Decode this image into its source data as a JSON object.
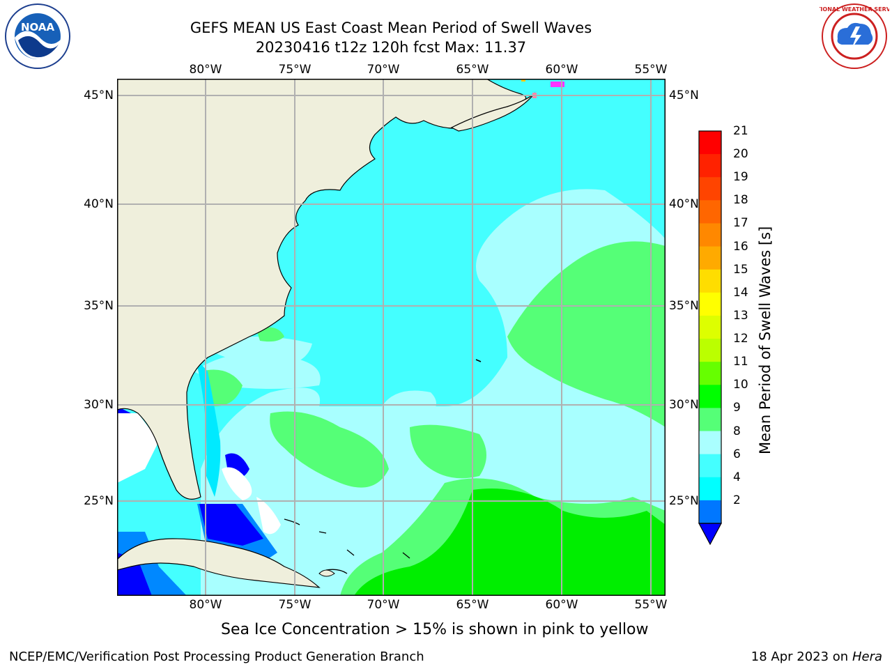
{
  "header": {
    "title_line1": "GEFS MEAN US East Coast Mean Period of Swell Waves",
    "title_line2": "20230416 t12z 120h fcst   Max: 11.37"
  },
  "logos": {
    "left": {
      "name": "noaa-logo",
      "text": "NOAA",
      "ring_text": "NATIONAL OCEANIC AND ATMOSPHERIC ADMINISTRATION · U.S. DEPARTMENT OF COMMERCE"
    },
    "right": {
      "name": "nws-logo",
      "ring_text": "NATIONAL WEATHER SERVICE"
    }
  },
  "map": {
    "lon_ticks": [
      "80°W",
      "75°W",
      "70°W",
      "65°W",
      "60°W",
      "55°W"
    ],
    "lat_ticks_left": [
      "45°N",
      "40°N",
      "35°N",
      "30°N",
      "25°N"
    ],
    "lat_ticks_right": [
      "45°N",
      "40°N",
      "35°N",
      "30°N",
      "25°N"
    ],
    "colors": {
      "land": "#efefdc",
      "ocean_base": "#44ffff",
      "band_8_9": "#a8ffff",
      "band_9_10": "#55ff77",
      "band_10_11": "#00ee00",
      "band_6_8": "#00eaff",
      "band_4_6": "#0088ff",
      "band_2_4": "#0000ff",
      "grid": "#b0b0b0",
      "ice": "#ff33ff"
    }
  },
  "colorbar": {
    "title": "Mean Period of Swell Waves [s]",
    "labels": [
      "21",
      "20",
      "19",
      "18",
      "17",
      "16",
      "15",
      "14",
      "13",
      "12",
      "11",
      "10",
      "9",
      "8",
      "6",
      "4",
      "2"
    ],
    "colors": [
      "#ff0000",
      "#ff2200",
      "#ff4400",
      "#ff6600",
      "#ff8800",
      "#ffaa00",
      "#ffdd00",
      "#ffff00",
      "#ddff00",
      "#bbff00",
      "#66ff00",
      "#00ff00",
      "#55ff77",
      "#aaffff",
      "#44ffff",
      "#00ffff",
      "#0077ff"
    ],
    "under_color": "#0000ff"
  },
  "caption": "Sea Ice Concentration > 15% is shown in pink to yellow",
  "footer": {
    "left": "NCEP/EMC/Verification Post Processing Product Generation Branch",
    "date": "18 Apr 2023 on ",
    "machine": "Hera"
  }
}
